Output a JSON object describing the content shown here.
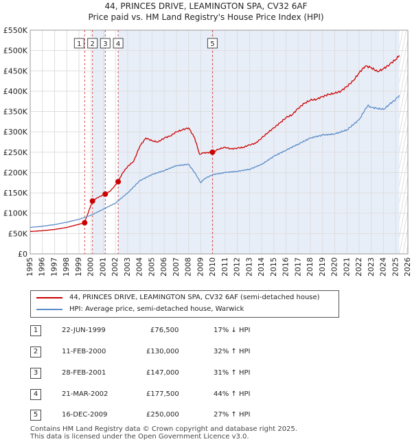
{
  "chart_data": {
    "type": "line",
    "title": "44, PRINCES DRIVE, LEAMINGTON SPA, CV32 6AF",
    "subtitle": "Price paid vs. HM Land Registry's House Price Index (HPI)",
    "x_ticks": [
      "1995",
      "1996",
      "1997",
      "1998",
      "1999",
      "2000",
      "2001",
      "2002",
      "2003",
      "2004",
      "2005",
      "2006",
      "2007",
      "2008",
      "2009",
      "2010",
      "2011",
      "2012",
      "2013",
      "2014",
      "2015",
      "2016",
      "2017",
      "2018",
      "2019",
      "2020",
      "2021",
      "2022",
      "2023",
      "2024",
      "2025",
      "2026"
    ],
    "y_ticks": [
      "£0",
      "£50K",
      "£100K",
      "£150K",
      "£200K",
      "£250K",
      "£300K",
      "£350K",
      "£400K",
      "£450K",
      "£500K",
      "£550K"
    ],
    "xlim": [
      1995,
      2026
    ],
    "ylim": [
      0,
      550000
    ],
    "grid": true,
    "series": [
      {
        "name": "44, PRINCES DRIVE, LEAMINGTON SPA, CV32 6AF (semi-detached house)",
        "color": "#cc0000",
        "x": [
          1995,
          1996,
          1997,
          1998,
          1999.47,
          1999.5,
          2000.11,
          2000.5,
          2001.16,
          2001.6,
          2002.22,
          2002.6,
          2003,
          2003.5,
          2004,
          2004.5,
          2005,
          2005.5,
          2006,
          2006.5,
          2007,
          2007.5,
          2008,
          2008.5,
          2008.9,
          2009.2,
          2009.96,
          2010.5,
          2011,
          2011.5,
          2012,
          2012.5,
          2013,
          2013.5,
          2014,
          2014.5,
          2015,
          2015.5,
          2016,
          2016.5,
          2017,
          2017.5,
          2018,
          2018.5,
          2019,
          2019.5,
          2020,
          2020.5,
          2021,
          2021.5,
          2022,
          2022.5,
          2023,
          2023.5,
          2024,
          2024.5,
          2025.0,
          2025.3
        ],
        "values": [
          55000,
          57000,
          60000,
          65000,
          76500,
          80000,
          130000,
          138000,
          147000,
          155000,
          177500,
          200000,
          215000,
          228000,
          265000,
          285000,
          278000,
          275000,
          285000,
          290000,
          300000,
          305000,
          310000,
          285000,
          245000,
          248000,
          250000,
          258000,
          262000,
          258000,
          260000,
          262000,
          268000,
          272000,
          285000,
          298000,
          310000,
          322000,
          335000,
          342000,
          358000,
          370000,
          378000,
          380000,
          387000,
          392000,
          395000,
          400000,
          412000,
          425000,
          445000,
          462000,
          458000,
          448000,
          455000,
          466000,
          478000,
          488000
        ]
      },
      {
        "name": "HPI: Average price, semi-detached house, Warwick",
        "color": "#5b8cc8",
        "x": [
          1995,
          1996,
          1997,
          1998,
          1999,
          2000,
          2001,
          2002,
          2003,
          2004,
          2005,
          2006,
          2007,
          2008,
          2008.5,
          2009,
          2009.3,
          2010,
          2011,
          2012,
          2013,
          2014,
          2015,
          2016,
          2017,
          2018,
          2019,
          2020,
          2021,
          2022,
          2022.7,
          2023,
          2023.5,
          2024,
          2024.5,
          2025,
          2025.3
        ],
        "values": [
          65000,
          68000,
          72000,
          78000,
          85000,
          95000,
          110000,
          125000,
          150000,
          180000,
          195000,
          205000,
          217000,
          220000,
          200000,
          175000,
          185000,
          195000,
          200000,
          203000,
          208000,
          220000,
          240000,
          255000,
          270000,
          285000,
          292000,
          295000,
          305000,
          330000,
          365000,
          360000,
          358000,
          355000,
          368000,
          380000,
          390000
        ]
      }
    ],
    "transactions": [
      {
        "n": "1",
        "date": "22-JUN-1999",
        "price": "£76,500",
        "hpi": "17% ↓ HPI",
        "x": 1999.47,
        "value": 76500
      },
      {
        "n": "2",
        "date": "11-FEB-2000",
        "price": "£130,000",
        "hpi": "32% ↑ HPI",
        "x": 2000.11,
        "value": 130000
      },
      {
        "n": "3",
        "date": "28-FEB-2001",
        "price": "£147,000",
        "hpi": "31% ↑ HPI",
        "x": 2001.16,
        "value": 147000
      },
      {
        "n": "4",
        "date": "21-MAR-2002",
        "price": "£177,500",
        "hpi": "44% ↑ HPI",
        "x": 2002.22,
        "value": 177500
      },
      {
        "n": "5",
        "date": "16-DEC-2009",
        "price": "£250,000",
        "hpi": "27% ↑ HPI",
        "x": 2009.96,
        "value": 250000
      }
    ]
  },
  "legend": {
    "property": "44, PRINCES DRIVE, LEAMINGTON SPA, CV32 6AF (semi-detached house)",
    "hpi": "HPI: Average price, semi-detached house, Warwick"
  },
  "colors": {
    "property": "#cc0000",
    "hpi": "#5b8cc8",
    "shade": "#e8eef8"
  },
  "footer": {
    "line1": "Contains HM Land Registry data © Crown copyright and database right 2025.",
    "line2": "This data is licensed under the Open Government Licence v3.0."
  }
}
